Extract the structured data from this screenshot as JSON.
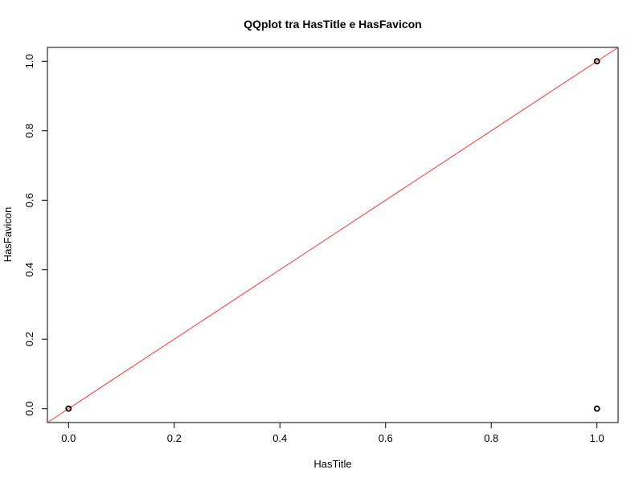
{
  "chart_data": {
    "type": "scatter",
    "title": "QQplot tra HasTitle e HasFavicon",
    "xlabel": "HasTitle",
    "ylabel": "HasFavicon",
    "xlim": [
      -0.04,
      1.04
    ],
    "ylim": [
      -0.04,
      1.04
    ],
    "x_ticks": [
      0.0,
      0.2,
      0.4,
      0.6,
      0.8,
      1.0
    ],
    "x_tick_labels": [
      "0.0",
      "0.2",
      "0.4",
      "0.6",
      "0.8",
      "1.0"
    ],
    "y_ticks": [
      0.0,
      0.2,
      0.4,
      0.6,
      0.8,
      1.0
    ],
    "y_tick_labels": [
      "0.0",
      "0.2",
      "0.4",
      "0.6",
      "0.8",
      "1.0"
    ],
    "grid": false,
    "series": [
      {
        "points": [
          {
            "x": 0.0,
            "y": 0.0
          },
          {
            "x": 1.0,
            "y": 1.0
          },
          {
            "x": 1.0,
            "y": 0.0
          }
        ],
        "color": "#000000",
        "marker": "open-circle"
      }
    ],
    "reference_line": {
      "intercept": 0,
      "slope": 1,
      "color": "#ff3333"
    }
  }
}
